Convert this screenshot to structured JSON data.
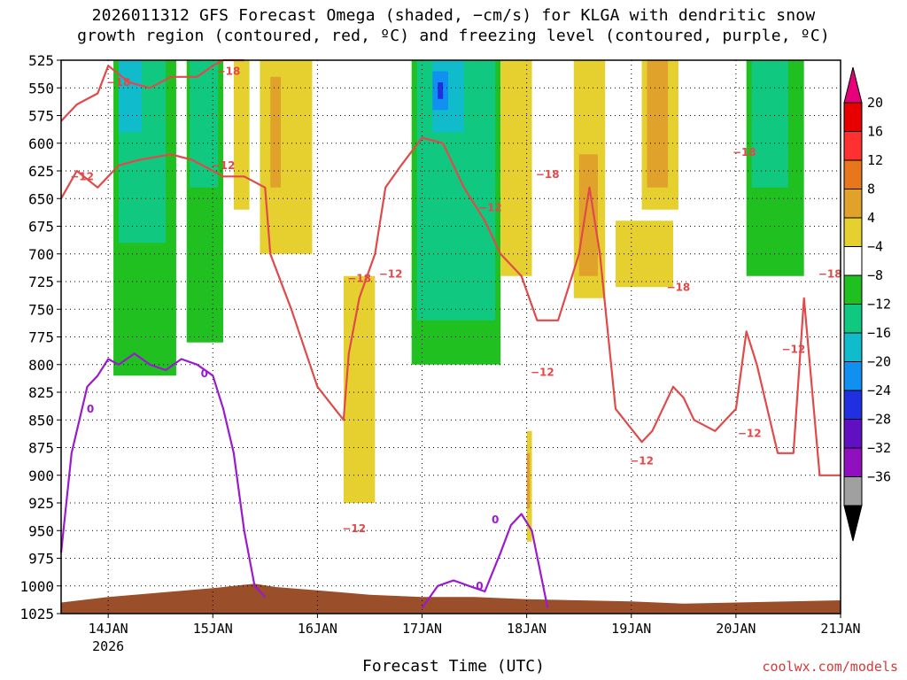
{
  "chart_data": {
    "type": "heatmap",
    "title_line1": "2026011312 GFS Forecast Omega (shaded, −cm/s) for KLGA with dendritic snow",
    "title_line2": "growth region (contoured, red, ºC) and freezing level (contoured, purple, ºC)",
    "xlabel": "Forecast Time (UTC)",
    "credit": "coolwx.com/models",
    "y_ticks": [
      "525",
      "550",
      "575",
      "600",
      "625",
      "650",
      "675",
      "700",
      "725",
      "750",
      "775",
      "800",
      "825",
      "850",
      "875",
      "900",
      "925",
      "950",
      "975",
      "1000",
      "1025"
    ],
    "y_values": [
      525,
      550,
      575,
      600,
      625,
      650,
      675,
      700,
      725,
      750,
      775,
      800,
      825,
      850,
      875,
      900,
      925,
      950,
      975,
      1000,
      1025
    ],
    "ylim": [
      525,
      1025
    ],
    "x_ticks": [
      "14JAN",
      "15JAN",
      "16JAN",
      "17JAN",
      "18JAN",
      "19JAN",
      "20JAN",
      "21JAN"
    ],
    "x_tick_sublabel": "2026",
    "x_values": [
      0,
      1,
      2,
      3,
      4,
      5,
      6,
      7
    ],
    "xlim": [
      -0.45,
      7.0
    ],
    "grid": true,
    "colorbar": {
      "labels": [
        "20",
        "16",
        "12",
        "8",
        "4",
        "−4",
        "−8",
        "−12",
        "−16",
        "−20",
        "−24",
        "−28",
        "−32",
        "−36"
      ],
      "colors": [
        "#e60000",
        "#ff3030",
        "#e8761c",
        "#e0a22a",
        "#e6d030",
        "#ffffff",
        "#20c020",
        "#10c880",
        "#10bccc",
        "#1090f0",
        "#2030e0",
        "#6010c0",
        "#9010c0",
        "#a0a0a0",
        "#000000"
      ]
    },
    "shaded_regions": [
      {
        "cat": "-4 to -8",
        "color": "#20c020",
        "x": [
          0.05,
          0.65
        ],
        "p": [
          525,
          810
        ]
      },
      {
        "cat": "-8 to -12",
        "color": "#10c880",
        "x": [
          0.1,
          0.55
        ],
        "p": [
          525,
          690
        ]
      },
      {
        "cat": "-12 to -16",
        "color": "#10bccc",
        "x": [
          0.1,
          0.32
        ],
        "p": [
          525,
          590
        ]
      },
      {
        "cat": "-4 to -8",
        "color": "#20c020",
        "x": [
          0.75,
          1.1
        ],
        "p": [
          525,
          780
        ]
      },
      {
        "cat": "-8 to -12",
        "color": "#10c880",
        "x": [
          0.78,
          1.05
        ],
        "p": [
          525,
          640
        ]
      },
      {
        "cat": "4 to 8",
        "color": "#e6d030",
        "x": [
          1.45,
          1.95
        ],
        "p": [
          525,
          700
        ]
      },
      {
        "cat": "4 to 8",
        "color": "#e6d030",
        "x": [
          1.2,
          1.35
        ],
        "p": [
          525,
          660
        ]
      },
      {
        "cat": "8 to 12",
        "color": "#e0a22a",
        "x": [
          1.55,
          1.65
        ],
        "p": [
          540,
          640
        ]
      },
      {
        "cat": "4 to 8",
        "color": "#e6d030",
        "x": [
          2.25,
          2.55
        ],
        "p": [
          720,
          925
        ]
      },
      {
        "cat": "-4 to -8",
        "color": "#20c020",
        "x": [
          2.9,
          3.75
        ],
        "p": [
          525,
          800
        ]
      },
      {
        "cat": "-8 to -12",
        "color": "#10c880",
        "x": [
          2.95,
          3.7
        ],
        "p": [
          525,
          760
        ]
      },
      {
        "cat": "-12 to -16",
        "color": "#10bccc",
        "x": [
          3.1,
          3.4
        ],
        "p": [
          525,
          590
        ]
      },
      {
        "cat": "-16 to -20",
        "color": "#1090f0",
        "x": [
          3.1,
          3.25
        ],
        "p": [
          535,
          570
        ]
      },
      {
        "cat": "-20 to -24",
        "color": "#2030e0",
        "x": [
          3.15,
          3.2
        ],
        "p": [
          545,
          560
        ]
      },
      {
        "cat": "4 to 8",
        "color": "#e6d030",
        "x": [
          3.75,
          4.05
        ],
        "p": [
          525,
          720
        ]
      },
      {
        "cat": "4 to 8",
        "color": "#e6d030",
        "x": [
          4.45,
          4.75
        ],
        "p": [
          525,
          740
        ]
      },
      {
        "cat": "8 to 12",
        "color": "#e0a22a",
        "x": [
          4.5,
          4.68
        ],
        "p": [
          610,
          720
        ]
      },
      {
        "cat": "4 to 8",
        "color": "#e6d030",
        "x": [
          4.85,
          5.4
        ],
        "p": [
          670,
          730
        ]
      },
      {
        "cat": "4 to 8",
        "color": "#e6d030",
        "x": [
          5.1,
          5.45
        ],
        "p": [
          525,
          660
        ]
      },
      {
        "cat": "8 to 12",
        "color": "#e0a22a",
        "x": [
          5.15,
          5.35
        ],
        "p": [
          525,
          640
        ]
      },
      {
        "cat": "-4 to -8",
        "color": "#20c020",
        "x": [
          6.1,
          6.65
        ],
        "p": [
          525,
          720
        ]
      },
      {
        "cat": "-8 to -12",
        "color": "#10c880",
        "x": [
          6.15,
          6.5
        ],
        "p": [
          525,
          640
        ]
      },
      {
        "cat": "4 to 8",
        "color": "#e6d030",
        "x": [
          4.0,
          4.05
        ],
        "p": [
          860,
          960
        ]
      },
      {
        "cat": "8 to 12",
        "color": "#e0a22a",
        "x": [
          4.0,
          4.03
        ],
        "p": [
          880,
          930
        ]
      }
    ],
    "series": [
      {
        "name": "dendritic -18",
        "color": "#e04a4a",
        "x": [
          -0.45,
          -0.3,
          -0.1,
          0.0,
          0.2,
          0.4,
          0.6,
          0.85,
          1.0,
          1.1,
          1.25,
          1.3
        ],
        "y": [
          580,
          565,
          555,
          530,
          545,
          550,
          540,
          540,
          530,
          525,
          525,
          525
        ]
      },
      {
        "name": "dendritic -12",
        "color": "#e04a4a",
        "x": [
          -0.45,
          -0.3,
          -0.1,
          0.1,
          0.3,
          0.6,
          0.8,
          1.0,
          1.1,
          1.3,
          1.5,
          1.55,
          1.75,
          2.0,
          2.25,
          2.3,
          2.4,
          2.55,
          2.65,
          2.8,
          3.0,
          3.2,
          3.4,
          3.6,
          3.75,
          3.95,
          4.1,
          4.3,
          4.5,
          4.6,
          4.7,
          4.85,
          5.1,
          5.2,
          5.4,
          5.5,
          5.6,
          5.8,
          6.0,
          6.1,
          6.2,
          6.4,
          6.55,
          6.65,
          6.8,
          7.0
        ],
        "y": [
          650,
          625,
          640,
          620,
          615,
          610,
          615,
          625,
          630,
          630,
          640,
          700,
          750,
          820,
          850,
          790,
          740,
          700,
          640,
          620,
          595,
          600,
          640,
          670,
          700,
          720,
          760,
          760,
          700,
          640,
          700,
          840,
          870,
          860,
          820,
          830,
          850,
          860,
          840,
          770,
          800,
          880,
          880,
          740,
          900,
          900
        ]
      },
      {
        "name": "freezing 0",
        "color": "#9a1ad0",
        "x": [
          -0.45,
          -0.35,
          -0.2,
          -0.1,
          0.0,
          0.1,
          0.25,
          0.4,
          0.55,
          0.7,
          0.85,
          1.0,
          1.1,
          1.2,
          1.3,
          1.4,
          1.5
        ],
        "y": [
          970,
          880,
          820,
          810,
          795,
          800,
          790,
          800,
          805,
          795,
          800,
          810,
          840,
          880,
          950,
          1000,
          1010
        ]
      },
      {
        "name": "freezing 0 (18 Jan)",
        "color": "#9a1ad0",
        "x": [
          3.0,
          3.15,
          3.3,
          3.45,
          3.6,
          3.75,
          3.85,
          3.95,
          4.05,
          4.2
        ],
        "y": [
          1020,
          1000,
          995,
          1000,
          1005,
          970,
          945,
          935,
          950,
          1020
        ]
      }
    ],
    "contour_labels": [
      {
        "text": "−18",
        "color": "#e04a4a",
        "x": 0.1,
        "p": 545
      },
      {
        "text": "−18",
        "color": "#e04a4a",
        "x": 1.15,
        "p": 535
      },
      {
        "text": "−12",
        "color": "#e04a4a",
        "x": -0.25,
        "p": 630
      },
      {
        "text": "−12",
        "color": "#e04a4a",
        "x": 1.1,
        "p": 620
      },
      {
        "text": "−18",
        "color": "#e04a4a",
        "x": 2.4,
        "p": 722
      },
      {
        "text": "−12",
        "color": "#e04a4a",
        "x": 2.7,
        "p": 718
      },
      {
        "text": "−12",
        "color": "#e04a4a",
        "x": 3.65,
        "p": 658
      },
      {
        "text": "−18",
        "color": "#e04a4a",
        "x": 4.2,
        "p": 628
      },
      {
        "text": "−12",
        "color": "#e04a4a",
        "x": 4.15,
        "p": 807
      },
      {
        "text": "−12",
        "color": "#e04a4a",
        "x": 2.35,
        "p": 948
      },
      {
        "text": "−18",
        "color": "#e04a4a",
        "x": 5.45,
        "p": 730
      },
      {
        "text": "−12",
        "color": "#e04a4a",
        "x": 5.1,
        "p": 887
      },
      {
        "text": "−18",
        "color": "#e04a4a",
        "x": 6.08,
        "p": 608
      },
      {
        "text": "−12",
        "color": "#e04a4a",
        "x": 6.13,
        "p": 862
      },
      {
        "text": "−12",
        "color": "#e04a4a",
        "x": 6.55,
        "p": 786
      },
      {
        "text": "−18",
        "color": "#e04a4a",
        "x": 6.9,
        "p": 718
      },
      {
        "text": "0",
        "color": "#9a1ad0",
        "x": -0.17,
        "p": 840
      },
      {
        "text": "0",
        "color": "#9a1ad0",
        "x": 0.92,
        "p": 808
      },
      {
        "text": "0",
        "color": "#9a1ad0",
        "x": 3.55,
        "p": 1000
      },
      {
        "text": "0",
        "color": "#9a1ad0",
        "x": 3.7,
        "p": 940
      }
    ],
    "terrain": {
      "color": "#9b4e2a",
      "x": [
        -0.45,
        0.0,
        0.5,
        1.0,
        1.4,
        1.6,
        2.0,
        2.5,
        3.0,
        3.5,
        4.0,
        4.5,
        5.0,
        5.5,
        6.0,
        6.5,
        7.0
      ],
      "p": [
        1015,
        1010,
        1006,
        1002,
        998,
        1001,
        1004,
        1008,
        1010,
        1010,
        1012,
        1013,
        1014,
        1016,
        1015,
        1014,
        1013
      ]
    }
  }
}
